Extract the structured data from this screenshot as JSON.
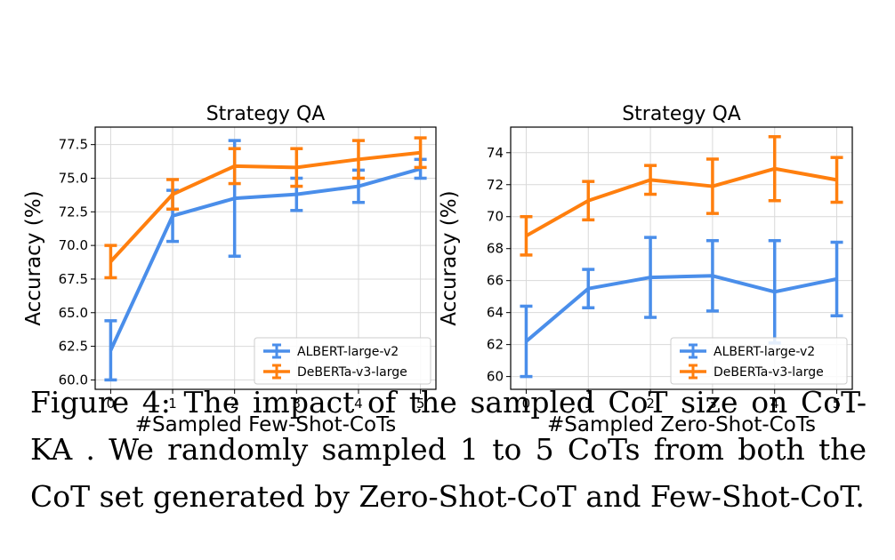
{
  "colors": {
    "albert": "#4a8eea",
    "deberta": "#ff7f0e"
  },
  "chart_data": [
    {
      "type": "line",
      "title": "Strategy QA",
      "xlabel": "#Sampled Few-Shot-CoTs",
      "ylabel": "Accuracy (%)",
      "x": [
        0,
        1,
        2,
        3,
        4,
        5
      ],
      "xlim": [
        -0.25,
        5.25
      ],
      "ylim": [
        59.3,
        78.8
      ],
      "xticks": [
        "0",
        "1",
        "2",
        "3",
        "4",
        "5"
      ],
      "yticks": [
        "60.0",
        "62.5",
        "65.0",
        "67.5",
        "70.0",
        "72.5",
        "75.0",
        "77.5"
      ],
      "ytick_values": [
        60,
        62.5,
        65,
        67.5,
        70,
        72.5,
        75,
        77.5
      ],
      "grid": true,
      "legend_position": "lower-right",
      "series": [
        {
          "name": "ALBERT-large-v2",
          "color": "#4a8eea",
          "values": [
            62.2,
            72.2,
            73.5,
            73.8,
            74.4,
            75.7
          ],
          "err_low": [
            60.0,
            70.3,
            69.2,
            72.6,
            73.2,
            75.0
          ],
          "err_high": [
            64.4,
            74.1,
            77.8,
            75.0,
            75.6,
            76.4
          ]
        },
        {
          "name": "DeBERTa-v3-large",
          "color": "#ff7f0e",
          "values": [
            68.8,
            73.8,
            75.9,
            75.8,
            76.4,
            76.9
          ],
          "err_low": [
            67.6,
            72.7,
            74.6,
            74.4,
            75.0,
            75.8
          ],
          "err_high": [
            70.0,
            74.9,
            77.2,
            77.2,
            77.8,
            78.0
          ]
        }
      ]
    },
    {
      "type": "line",
      "title": "Strategy QA",
      "xlabel": "#Sampled Zero-Shot-CoTs",
      "ylabel": "Accuracy (%)",
      "x": [
        0,
        1,
        2,
        3,
        4,
        5
      ],
      "xlim": [
        -0.25,
        5.25
      ],
      "ylim": [
        59.2,
        75.6
      ],
      "xticks": [
        "0",
        "1",
        "2",
        "3",
        "4",
        "5"
      ],
      "yticks": [
        "60",
        "62",
        "64",
        "66",
        "68",
        "70",
        "72",
        "74"
      ],
      "ytick_values": [
        60,
        62,
        64,
        66,
        68,
        70,
        72,
        74
      ],
      "grid": true,
      "legend_position": "lower-right",
      "series": [
        {
          "name": "ALBERT-large-v2",
          "color": "#4a8eea",
          "values": [
            62.2,
            65.5,
            66.2,
            66.3,
            65.3,
            66.1
          ],
          "err_low": [
            60.0,
            64.3,
            63.7,
            64.1,
            62.1,
            63.8
          ],
          "err_high": [
            64.4,
            66.7,
            68.7,
            68.5,
            68.5,
            68.4
          ]
        },
        {
          "name": "DeBERTa-v3-large",
          "color": "#ff7f0e",
          "values": [
            68.8,
            71.0,
            72.3,
            71.9,
            73.0,
            72.3
          ],
          "err_low": [
            67.6,
            69.8,
            71.4,
            70.2,
            71.0,
            70.9
          ],
          "err_high": [
            70.0,
            72.2,
            73.2,
            73.6,
            75.0,
            73.7
          ]
        }
      ]
    }
  ],
  "caption": "Figure 4: The impact of the sampled CoT size on CoT-KA . We randomly sampled 1 to 5 CoTs from both the CoT set generated by Zero-Shot-CoT and Few-Shot-CoT."
}
